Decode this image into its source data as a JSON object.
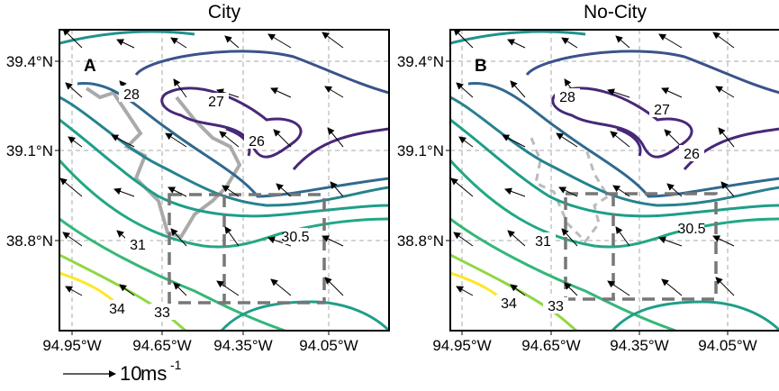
{
  "panels": [
    {
      "title": "City",
      "letter": "A",
      "lat_labels": [
        "39.4°N",
        "39.1°N",
        "38.8°N"
      ],
      "lon_labels": [
        "94.95°W",
        "94.65°W",
        "94.35°W",
        "94.05°W"
      ],
      "contour_labels": [
        "28",
        "27",
        "26",
        "31",
        "30.5",
        "34",
        "33"
      ]
    },
    {
      "title": "No-City",
      "letter": "B",
      "lat_labels": [
        "39.4°N",
        "39.1°N",
        "38.8°N"
      ],
      "lon_labels": [
        "94.95°W",
        "94.65°W",
        "94.35°W",
        "94.05°W"
      ],
      "contour_labels": [
        "28",
        "27",
        "26",
        "31",
        "30.5",
        "34",
        "33"
      ]
    }
  ],
  "scale": {
    "number": "10",
    "unit": "ms",
    "exponent": "-1"
  }
}
